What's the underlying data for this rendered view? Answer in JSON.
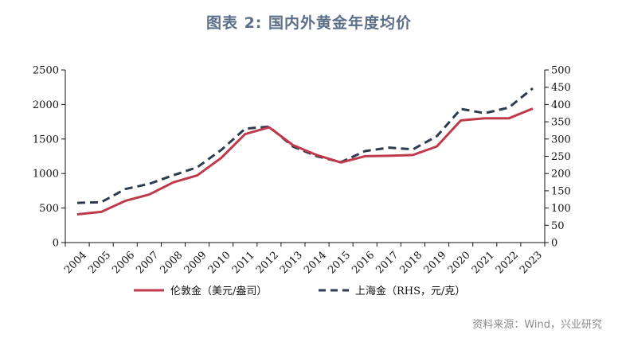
{
  "title": "图表 2:  国内外黄金年度均价",
  "source": "资料来源：Wind，兴业研究",
  "colors": {
    "london": "#c0394b",
    "shanghai": "#2e3a4f"
  },
  "chart_data": {
    "type": "line",
    "x": [
      "2004",
      "2005",
      "2006",
      "2007",
      "2008",
      "2009",
      "2010",
      "2011",
      "2012",
      "2013",
      "2014",
      "2015",
      "2016",
      "2017",
      "2018",
      "2019",
      "2020",
      "2021",
      "2022",
      "2023"
    ],
    "y_left": {
      "ylim": [
        0,
        2500
      ],
      "ticks": [
        0,
        500,
        1000,
        1500,
        2000,
        2500
      ]
    },
    "y_right": {
      "ylim": [
        0,
        500
      ],
      "ticks": [
        0,
        50,
        100,
        150,
        200,
        250,
        300,
        350,
        400,
        450,
        500
      ]
    },
    "series": [
      {
        "name": "伦敦金（美元/盎司）",
        "axis": "left",
        "style": "solid",
        "values": [
          409,
          445,
          604,
          696,
          872,
          972,
          1225,
          1572,
          1669,
          1411,
          1266,
          1160,
          1251,
          1257,
          1268,
          1393,
          1770,
          1799,
          1800,
          1941
        ]
      },
      {
        "name": "上海金（RHS，元/克）",
        "axis": "right",
        "style": "dashed",
        "values": [
          115,
          117,
          155,
          170,
          195,
          218,
          268,
          330,
          336,
          278,
          250,
          233,
          265,
          275,
          270,
          308,
          387,
          375,
          391,
          447
        ]
      }
    ],
    "grid": false,
    "legend": "bottom"
  }
}
